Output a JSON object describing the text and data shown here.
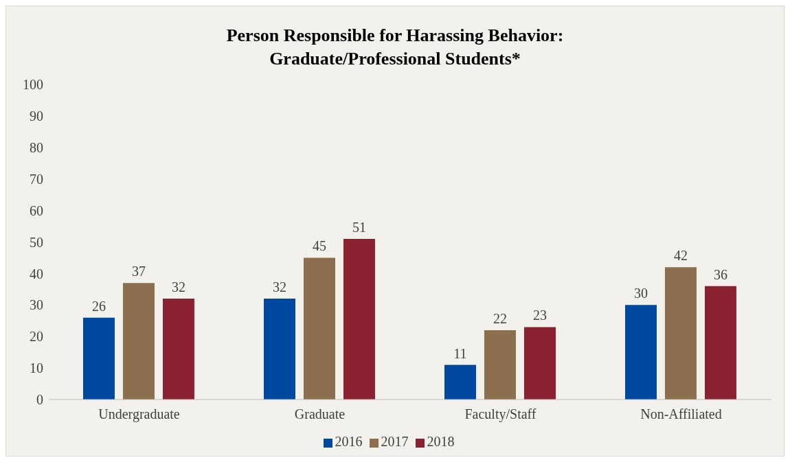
{
  "chart_data": {
    "type": "bar",
    "title": "Person Responsible for Harassing Behavior: Graduate/Professional Students*",
    "categories": [
      "Undergraduate",
      "Graduate",
      "Faculty/Staff",
      "Non-Affiliated"
    ],
    "series": [
      {
        "name": "2016",
        "color": "#0047a0",
        "values": [
          26,
          32,
          11,
          30
        ]
      },
      {
        "name": "2017",
        "color": "#8b6f4e",
        "values": [
          37,
          45,
          22,
          42
        ]
      },
      {
        "name": "2018",
        "color": "#8b2232",
        "values": [
          32,
          51,
          23,
          36
        ]
      }
    ],
    "ylim": [
      0,
      100
    ],
    "yticks": [
      0,
      10,
      20,
      30,
      40,
      50,
      60,
      70,
      80,
      90,
      100
    ],
    "grid": false,
    "legend": "bottom",
    "data_labels": true
  }
}
